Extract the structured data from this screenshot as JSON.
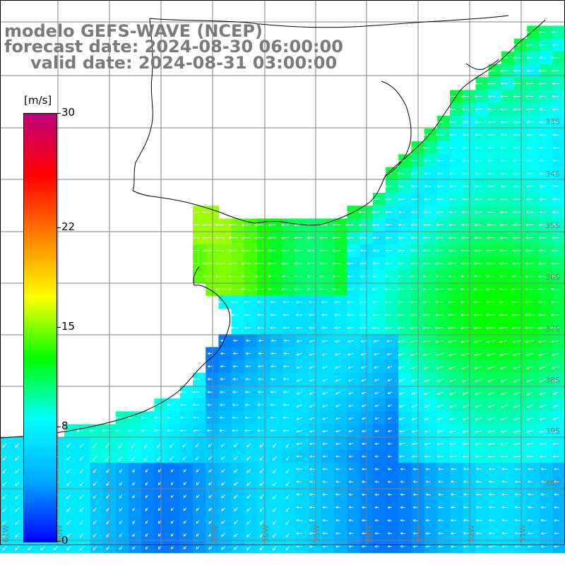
{
  "title": {
    "line1": "modelo GEFS-WAVE (NCEP)",
    "line2": "forecast date: 2024-08-30 06:00:00",
    "line3": "valid date: 2024-08-31 03:00:00"
  },
  "colorbar": {
    "unit": "[m/s]",
    "ticks": [
      "30",
      "22",
      "15",
      "8",
      "0"
    ],
    "tick_values": [
      30,
      22,
      15,
      8,
      0
    ],
    "min": 0,
    "max": 30,
    "colors": [
      "#0000ff",
      "#00aaff",
      "#00ffff",
      "#00ff00",
      "#ffff00",
      "#ff8000",
      "#ff0000",
      "#c0007a"
    ]
  },
  "map": {
    "longitude_labels": [
      "61W",
      "60W",
      "57W",
      "56W",
      "55W",
      "54W",
      "53W",
      "52W",
      "51W"
    ],
    "latitude_labels": [
      "33S",
      "34S",
      "35S",
      "36S",
      "37S",
      "38S",
      "39S",
      "40S"
    ],
    "land_color": "#ffffff",
    "grid_color": "#808080",
    "coast_color": "#000000",
    "arrow_color": "#ffffff"
  }
}
